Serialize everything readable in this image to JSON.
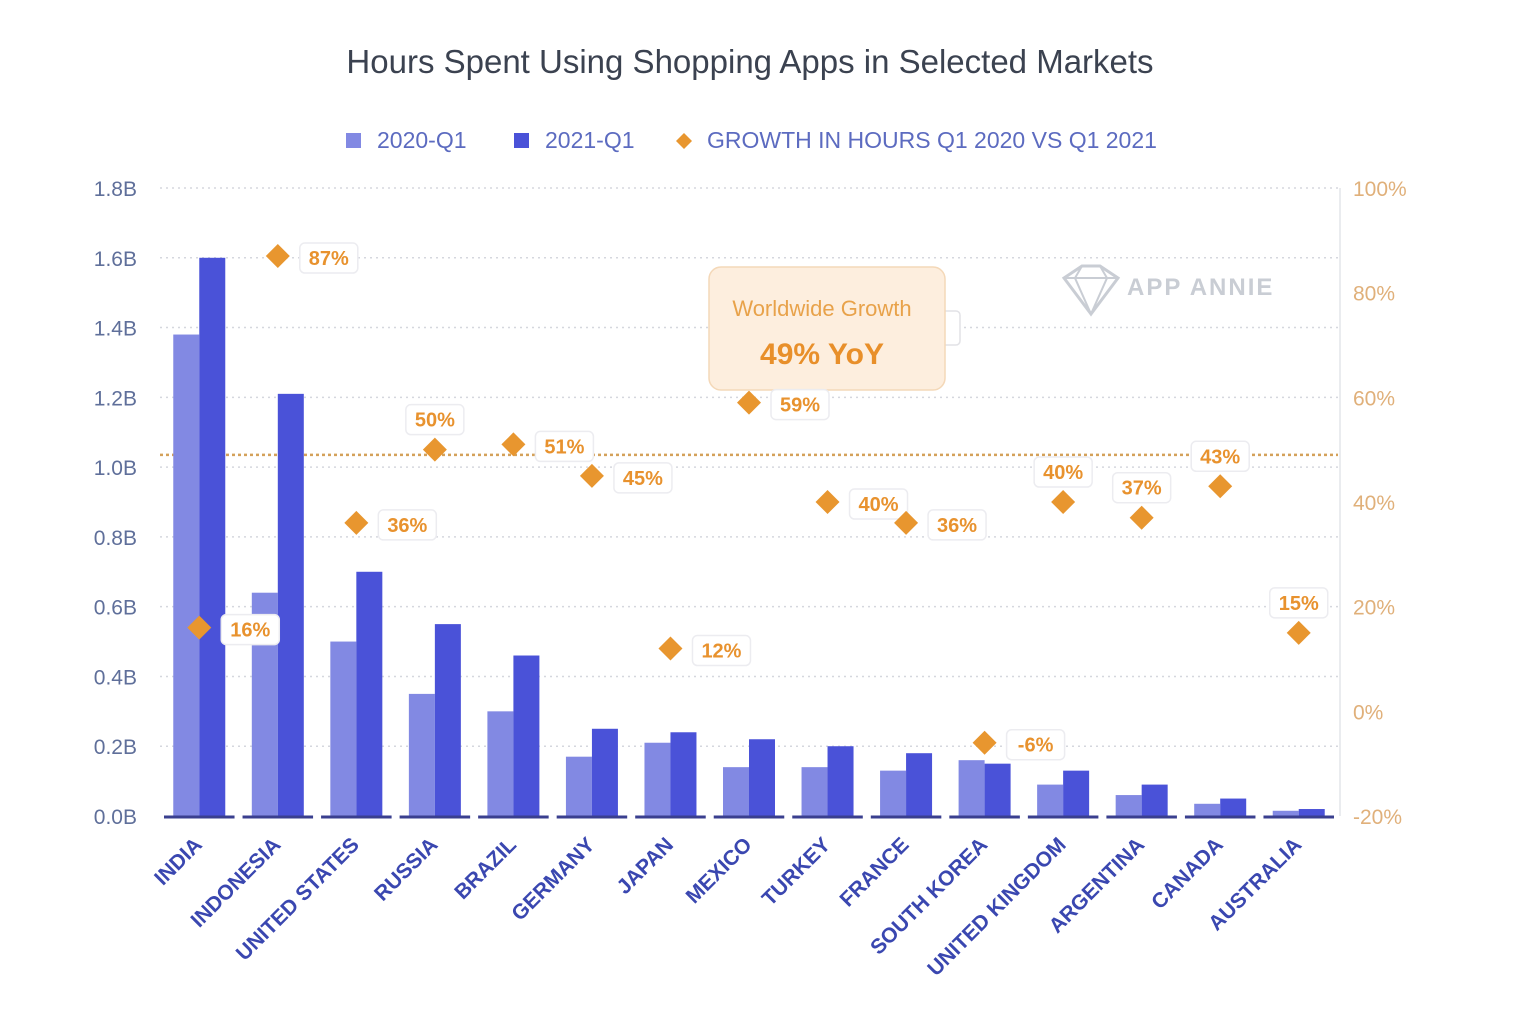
{
  "colors": {
    "bar_2020": "#8289e3",
    "bar_2021": "#4a52d8",
    "growth": "#e8962f",
    "worldwide_line": "#d4a15a",
    "callout_bg": "#fdeede",
    "axis": "#3a3f8f",
    "grid": "#d5d7de"
  },
  "watermark": {
    "text": "APP ANNIE",
    "icon": "diamond-logo-icon"
  },
  "callout": {
    "title": "Worldwide Growth",
    "value": "49% YoY"
  },
  "chart_data": {
    "type": "bar",
    "title": "Hours Spent Using Shopping Apps in Selected Markets",
    "categories": [
      "INDIA",
      "INDONESIA",
      "UNITED STATES",
      "RUSSIA",
      "BRAZIL",
      "GERMANY",
      "JAPAN",
      "MEXICO",
      "TURKEY",
      "FRANCE",
      "SOUTH KOREA",
      "UNITED KINGDOM",
      "ARGENTINA",
      "CANADA",
      "AUSTRALIA"
    ],
    "series": [
      {
        "name": "2020-Q1",
        "axis": "left",
        "values": [
          1.38,
          0.64,
          0.5,
          0.35,
          0.3,
          0.17,
          0.21,
          0.14,
          0.14,
          0.13,
          0.16,
          0.09,
          0.06,
          0.035,
          0.015
        ]
      },
      {
        "name": "2021-Q1",
        "axis": "left",
        "values": [
          1.6,
          1.21,
          0.7,
          0.55,
          0.46,
          0.25,
          0.24,
          0.22,
          0.2,
          0.18,
          0.15,
          0.13,
          0.09,
          0.05,
          0.02
        ]
      },
      {
        "name": "GROWTH IN HOURS Q1 2020 VS Q1 2021",
        "axis": "right",
        "type": "scatter",
        "values": [
          16,
          87,
          36,
          50,
          51,
          45,
          12,
          59,
          40,
          36,
          -6,
          40,
          37,
          43,
          15
        ]
      }
    ],
    "growth_labels": [
      "16%",
      "87%",
      "36%",
      "50%",
      "51%",
      "45%",
      "12%",
      "59%",
      "40%",
      "36%",
      "-6%",
      "40%",
      "37%",
      "43%",
      "15%"
    ],
    "growth_label_position": [
      "right",
      "right",
      "right",
      "above",
      "right",
      "right",
      "right",
      "right",
      "right",
      "right",
      "right",
      "above",
      "above",
      "above",
      "above"
    ],
    "worldwide_growth_reference": 49,
    "y_left": {
      "ylim": [
        0,
        1.8
      ],
      "ticks": [
        0,
        0.2,
        0.4,
        0.6,
        0.8,
        1.0,
        1.2,
        1.4,
        1.6,
        1.8
      ],
      "tick_labels": [
        "0.0B",
        "0.2B",
        "0.4B",
        "0.6B",
        "0.8B",
        "1.0B",
        "1.2B",
        "1.4B",
        "1.6B",
        "1.8B"
      ]
    },
    "y_right": {
      "ylim": [
        -20,
        100
      ],
      "ticks": [
        -20,
        0,
        20,
        40,
        60,
        80,
        100
      ],
      "tick_labels": [
        "-20%",
        "0%",
        "20%",
        "40%",
        "60%",
        "80%",
        "100%"
      ]
    },
    "grid": true,
    "legend_position": "top"
  }
}
